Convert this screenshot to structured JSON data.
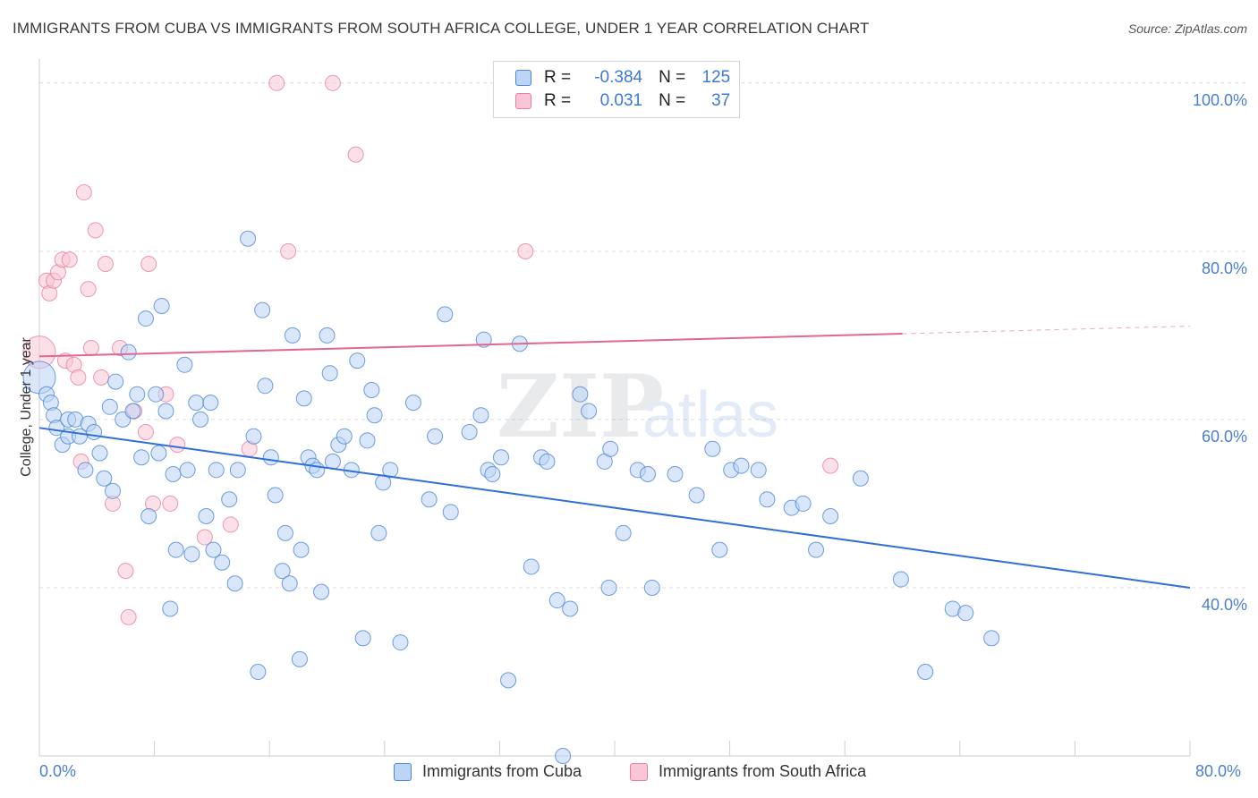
{
  "title": "IMMIGRANTS FROM CUBA VS IMMIGRANTS FROM SOUTH AFRICA COLLEGE, UNDER 1 YEAR CORRELATION CHART",
  "source": "Source: ZipAtlas.com",
  "watermark": {
    "zip": "ZIP",
    "atlas": "atlas"
  },
  "colors": {
    "blue": "#4a86d8",
    "blue_fill": "#bcd4f5",
    "blue_line": "#2f6fd6",
    "pink": "#e87fa0",
    "pink_fill": "#f8c6d6",
    "pink_line": "#e0688f",
    "tick": "#4a7fd0",
    "grid": "#dcdcdc"
  },
  "legend": [
    {
      "r_label": "R =",
      "r_value": "-0.384",
      "n_label": "N =",
      "n_value": "125"
    },
    {
      "r_label": "R =",
      "r_value": "0.031",
      "n_label": "N =",
      "n_value": "37"
    }
  ],
  "chart_data": {
    "type": "scatter",
    "xlabel": "",
    "ylabel": "College, Under 1 year",
    "xlim": [
      0,
      80
    ],
    "ylim": [
      20,
      102
    ],
    "x_tick_labels": [
      "0.0%",
      "80.0%"
    ],
    "y_ticks": [
      40,
      60,
      80,
      100
    ],
    "y_tick_labels": [
      "40.0%",
      "60.0%",
      "80.0%",
      "100.0%"
    ],
    "series": [
      {
        "name": "Immigrants from Cuba",
        "color": "blue",
        "trend": {
          "x": [
            0,
            80
          ],
          "y": [
            59.0,
            40.0
          ]
        },
        "points": [
          [
            0.0,
            65.0
          ],
          [
            0.5,
            63.0
          ],
          [
            0.8,
            62.0
          ],
          [
            1.0,
            60.5
          ],
          [
            1.2,
            59.0
          ],
          [
            1.6,
            57.0
          ],
          [
            2.0,
            58.0
          ],
          [
            2.0,
            60.0
          ],
          [
            2.5,
            60.0
          ],
          [
            2.8,
            58.0
          ],
          [
            3.2,
            54.0
          ],
          [
            3.4,
            59.5
          ],
          [
            3.8,
            58.5
          ],
          [
            4.2,
            56.0
          ],
          [
            4.5,
            53.0
          ],
          [
            4.9,
            61.5
          ],
          [
            5.1,
            51.5
          ],
          [
            5.3,
            64.5
          ],
          [
            5.8,
            60.0
          ],
          [
            6.2,
            68.0
          ],
          [
            6.5,
            61.0
          ],
          [
            6.8,
            63.0
          ],
          [
            7.1,
            55.5
          ],
          [
            7.4,
            72.0
          ],
          [
            7.6,
            48.5
          ],
          [
            8.1,
            63.0
          ],
          [
            8.3,
            56.0
          ],
          [
            8.5,
            73.5
          ],
          [
            8.8,
            61.0
          ],
          [
            9.1,
            37.5
          ],
          [
            9.3,
            53.5
          ],
          [
            9.5,
            44.5
          ],
          [
            10.1,
            66.5
          ],
          [
            10.3,
            54.0
          ],
          [
            10.6,
            44.0
          ],
          [
            10.9,
            62.0
          ],
          [
            11.2,
            60.0
          ],
          [
            11.6,
            48.5
          ],
          [
            11.9,
            62.0
          ],
          [
            12.1,
            44.5
          ],
          [
            12.3,
            54.0
          ],
          [
            12.7,
            43.0
          ],
          [
            13.2,
            50.5
          ],
          [
            13.6,
            40.5
          ],
          [
            13.8,
            54.0
          ],
          [
            14.5,
            81.5
          ],
          [
            14.9,
            58.0
          ],
          [
            15.2,
            30.0
          ],
          [
            15.5,
            73.0
          ],
          [
            15.7,
            64.0
          ],
          [
            16.1,
            55.5
          ],
          [
            16.4,
            51.0
          ],
          [
            16.9,
            42.0
          ],
          [
            17.1,
            46.5
          ],
          [
            17.4,
            40.5
          ],
          [
            17.6,
            70.0
          ],
          [
            18.2,
            44.5
          ],
          [
            18.4,
            62.5
          ],
          [
            18.7,
            55.5
          ],
          [
            19.0,
            54.5
          ],
          [
            19.3,
            54.0
          ],
          [
            19.6,
            39.5
          ],
          [
            20.0,
            70.0
          ],
          [
            20.2,
            65.5
          ],
          [
            20.4,
            55.0
          ],
          [
            20.8,
            57.0
          ],
          [
            21.2,
            58.0
          ],
          [
            21.7,
            54.0
          ],
          [
            22.1,
            67.0
          ],
          [
            22.5,
            34.0
          ],
          [
            22.8,
            57.5
          ],
          [
            23.1,
            63.5
          ],
          [
            23.3,
            60.5
          ],
          [
            23.6,
            46.5
          ],
          [
            23.9,
            52.5
          ],
          [
            24.4,
            54.0
          ],
          [
            25.1,
            33.5
          ],
          [
            26.0,
            62.0
          ],
          [
            27.1,
            50.5
          ],
          [
            27.5,
            58.0
          ],
          [
            28.2,
            72.5
          ],
          [
            28.6,
            49.0
          ],
          [
            29.9,
            58.5
          ],
          [
            30.7,
            60.5
          ],
          [
            30.9,
            69.5
          ],
          [
            31.2,
            54.0
          ],
          [
            31.5,
            53.5
          ],
          [
            32.1,
            55.5
          ],
          [
            32.6,
            29.0
          ],
          [
            33.4,
            69.0
          ],
          [
            34.2,
            42.5
          ],
          [
            34.9,
            55.5
          ],
          [
            35.3,
            55.0
          ],
          [
            36.0,
            38.5
          ],
          [
            36.9,
            37.5
          ],
          [
            37.6,
            63.0
          ],
          [
            38.2,
            61.0
          ],
          [
            39.3,
            55.0
          ],
          [
            39.6,
            40.0
          ],
          [
            39.7,
            56.5
          ],
          [
            40.6,
            46.5
          ],
          [
            41.6,
            54.0
          ],
          [
            42.3,
            53.5
          ],
          [
            42.6,
            40.0
          ],
          [
            44.2,
            53.5
          ],
          [
            45.7,
            51.0
          ],
          [
            46.8,
            56.5
          ],
          [
            47.3,
            44.5
          ],
          [
            48.1,
            54.0
          ],
          [
            48.8,
            54.5
          ],
          [
            50.0,
            54.0
          ],
          [
            50.6,
            50.5
          ],
          [
            52.3,
            49.5
          ],
          [
            53.1,
            50.0
          ],
          [
            54.0,
            44.5
          ],
          [
            55.0,
            48.5
          ],
          [
            57.1,
            53.0
          ],
          [
            59.9,
            41.0
          ],
          [
            61.6,
            30.0
          ],
          [
            63.5,
            37.5
          ],
          [
            64.4,
            37.0
          ],
          [
            66.2,
            34.0
          ],
          [
            36.4,
            20.0
          ],
          [
            18.1,
            31.5
          ]
        ]
      },
      {
        "name": "Immigrants from South Africa",
        "color": "pink",
        "trend": {
          "x": [
            0,
            60
          ],
          "y": [
            67.5,
            70.2
          ]
        },
        "trend_extension": {
          "x": [
            60,
            80
          ],
          "y": [
            70.2,
            71.1
          ]
        },
        "points": [
          [
            0.0,
            68.0
          ],
          [
            0.5,
            76.5
          ],
          [
            0.7,
            75.0
          ],
          [
            1.0,
            76.5
          ],
          [
            1.3,
            77.5
          ],
          [
            1.6,
            79.0
          ],
          [
            1.8,
            67.0
          ],
          [
            2.1,
            79.0
          ],
          [
            2.4,
            66.5
          ],
          [
            2.7,
            65.0
          ],
          [
            2.9,
            55.0
          ],
          [
            3.1,
            87.0
          ],
          [
            3.4,
            75.5
          ],
          [
            3.6,
            68.5
          ],
          [
            3.9,
            82.5
          ],
          [
            4.3,
            65.0
          ],
          [
            4.6,
            78.5
          ],
          [
            5.1,
            50.0
          ],
          [
            5.6,
            68.5
          ],
          [
            6.0,
            42.0
          ],
          [
            6.2,
            36.5
          ],
          [
            6.6,
            61.0
          ],
          [
            7.4,
            58.5
          ],
          [
            7.6,
            78.5
          ],
          [
            7.9,
            50.0
          ],
          [
            8.8,
            63.0
          ],
          [
            9.1,
            50.0
          ],
          [
            9.6,
            57.0
          ],
          [
            11.5,
            46.0
          ],
          [
            13.3,
            47.5
          ],
          [
            14.6,
            56.5
          ],
          [
            16.5,
            100.0
          ],
          [
            17.3,
            80.0
          ],
          [
            20.4,
            100.0
          ],
          [
            22.0,
            91.5
          ],
          [
            33.8,
            80.0
          ],
          [
            55.0,
            54.5
          ]
        ]
      }
    ]
  },
  "bottom_legend": [
    "Immigrants from Cuba",
    "Immigrants from South Africa"
  ]
}
